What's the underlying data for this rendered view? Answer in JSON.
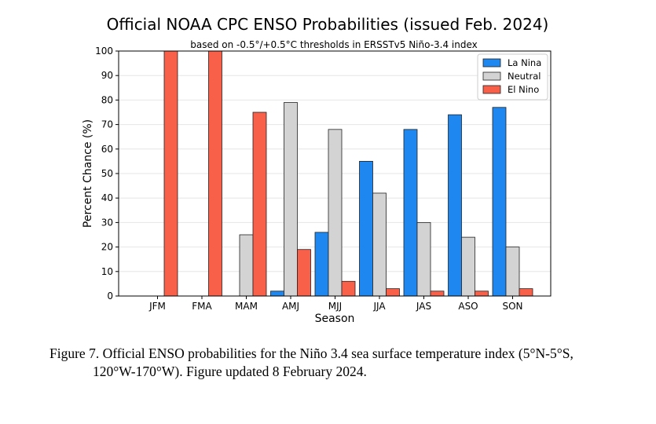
{
  "chart_data": {
    "type": "bar",
    "title": "Official NOAA CPC ENSO Probabilities (issued Feb. 2024)",
    "subtitle": "based on -0.5°/+0.5°C thresholds in ERSSTv5 Niño-3.4 index",
    "xlabel": "Season",
    "ylabel": "Percent Chance (%)",
    "ylim": [
      0,
      100
    ],
    "yticks": [
      0,
      10,
      20,
      30,
      40,
      50,
      60,
      70,
      80,
      90,
      100
    ],
    "grid": true,
    "legend_position": "top-right",
    "categories": [
      "JFM",
      "FMA",
      "MAM",
      "AMJ",
      "MJJ",
      "JJA",
      "JAS",
      "ASO",
      "SON"
    ],
    "series": [
      {
        "name": "La Nina",
        "color": "#1e88f0",
        "values": [
          0,
          0,
          0,
          2,
          26,
          55,
          68,
          74,
          77
        ]
      },
      {
        "name": "Neutral",
        "color": "#d3d3d3",
        "values": [
          0,
          0,
          25,
          79,
          68,
          42,
          30,
          24,
          20
        ]
      },
      {
        "name": "El Nino",
        "color": "#f8604a",
        "values": [
          100,
          100,
          75,
          19,
          6,
          3,
          2,
          2,
          3
        ]
      }
    ]
  },
  "caption": {
    "line1": "Figure 7. Official ENSO probabilities for the Niño 3.4 sea surface temperature index (5°N-5°S,",
    "line2": "120°W-170°W). Figure updated 8 February 2024."
  }
}
